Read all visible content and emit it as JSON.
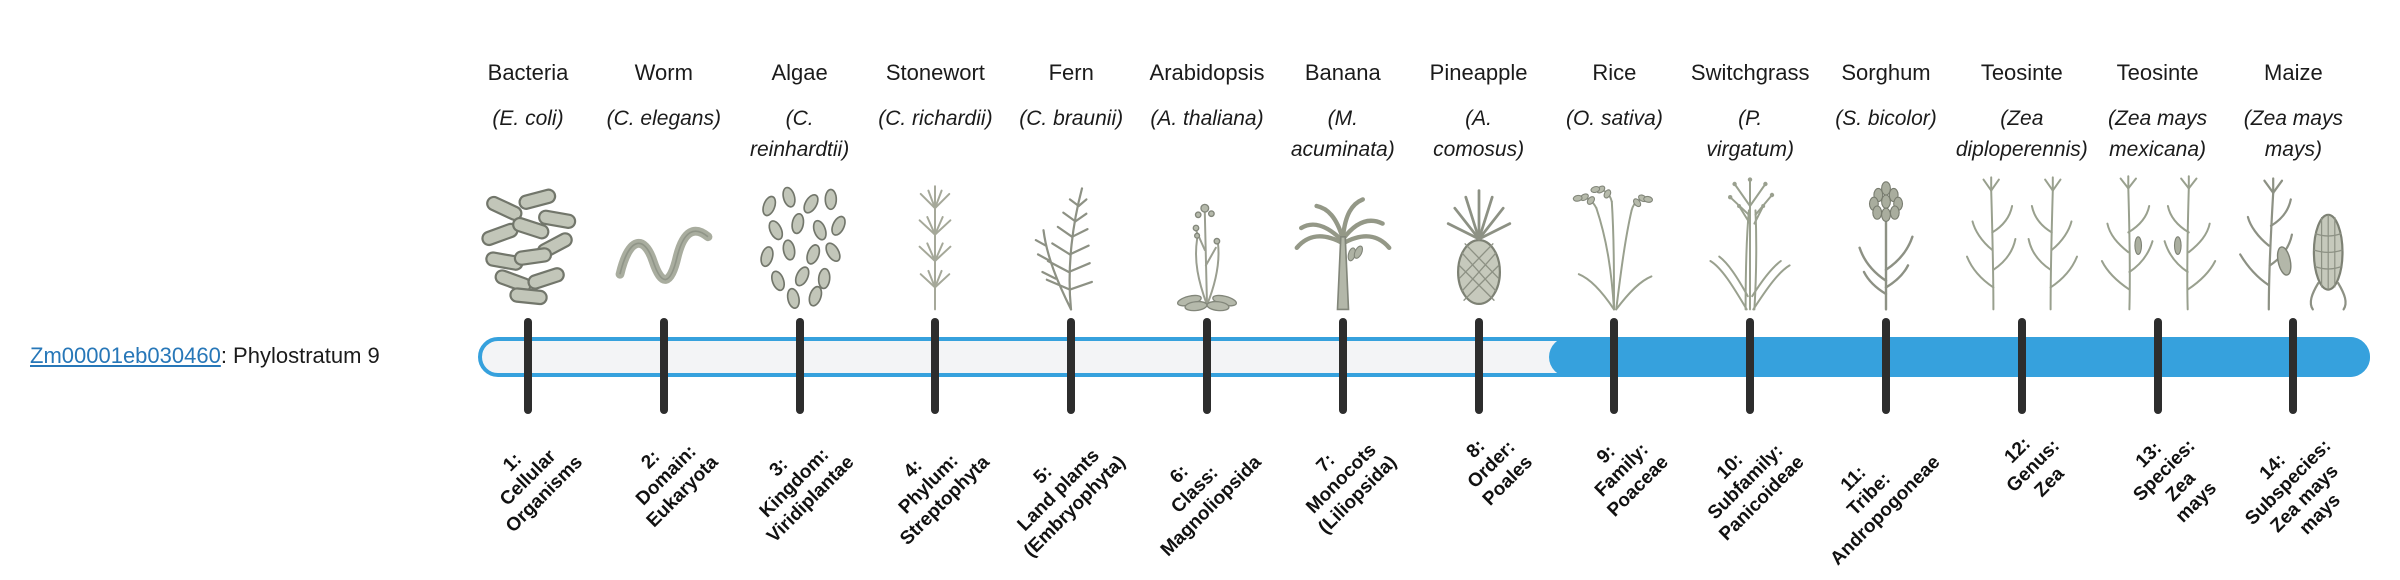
{
  "gene": {
    "id": "Zm00001eb030460",
    "suffix": ": Phylostratum 9",
    "phylostratum": 9,
    "link_color": "#2777b8"
  },
  "bar": {
    "outline_color": "#36a1dd",
    "fill_color": "#36a1dd",
    "track_color": "#f3f4f6",
    "tick_color": "#2d2d2d",
    "filled_from_stratum": 9,
    "filled_to_stratum": 14
  },
  "strata": [
    {
      "index": 1,
      "organism": "Bacteria",
      "scientific": "(E. coli)",
      "icon": "bacteria-icon",
      "axis_label": "1:\nCellular\nOrganisms"
    },
    {
      "index": 2,
      "organism": "Worm",
      "scientific": "(C. elegans)",
      "icon": "worm-icon",
      "axis_label": "2:\nDomain:\nEukaryota"
    },
    {
      "index": 3,
      "organism": "Algae",
      "scientific": "(C.\nreinhardtii)",
      "icon": "algae-icon",
      "axis_label": "3:\nKingdom:\nViridiplantae"
    },
    {
      "index": 4,
      "organism": "Stonewort",
      "scientific": "(C. richardii)",
      "icon": "stonewort-icon",
      "axis_label": "4:\nPhylum:\nStreptophyta"
    },
    {
      "index": 5,
      "organism": "Fern",
      "scientific": "(C. braunii)",
      "icon": "fern-icon",
      "axis_label": "5:\nLand plants\n(Embryophyta)"
    },
    {
      "index": 6,
      "organism": "Arabidopsis",
      "scientific": "(A. thaliana)",
      "icon": "arabidopsis-icon",
      "axis_label": "6:\nClass:\nMagnoliopsida"
    },
    {
      "index": 7,
      "organism": "Banana",
      "scientific": "(M.\nacuminata)",
      "icon": "banana-icon",
      "axis_label": "7:\nMonocots\n(Liliopsida)"
    },
    {
      "index": 8,
      "organism": "Pineapple",
      "scientific": "(A.\ncomosus)",
      "icon": "pineapple-icon",
      "axis_label": "8:\nOrder:\nPoales"
    },
    {
      "index": 9,
      "organism": "Rice",
      "scientific": "(O. sativa)",
      "icon": "rice-icon",
      "axis_label": "9:\nFamily:\nPoaceae"
    },
    {
      "index": 10,
      "organism": "Switchgrass",
      "scientific": "(P.\nvirgatum)",
      "icon": "switchgrass-icon",
      "axis_label": "10:\nSubfamily:\nPanicoideae"
    },
    {
      "index": 11,
      "organism": "Sorghum",
      "scientific": "(S. bicolor)",
      "icon": "sorghum-icon",
      "axis_label": "11:\nTribe:\nAndropogoneae"
    },
    {
      "index": 12,
      "organism": "Teosinte",
      "scientific": "(Zea\ndiploperennis)",
      "icon": "teosinte-icon",
      "axis_label": "12:\nGenus:\nZea"
    },
    {
      "index": 13,
      "organism": "Teosinte",
      "scientific": "(Zea mays\nmexicana)",
      "icon": "teosinte-mexicana-icon",
      "axis_label": "13:\nSpecies:\nZea\nmays"
    },
    {
      "index": 14,
      "organism": "Maize",
      "scientific": "(Zea mays\nmays)",
      "icon": "maize-icon",
      "axis_label": "14:\nSubspecies:\nZea mays\nmays"
    }
  ],
  "chart_data": {
    "type": "bar",
    "title": "Zm00001eb030460: Phylostratum 9",
    "orientation": "horizontal",
    "categories": [
      "1: Cellular Organisms",
      "2: Domain: Eukaryota",
      "3: Kingdom: Viridiplantae",
      "4: Phylum: Streptophyta",
      "5: Land plants (Embryophyta)",
      "6: Class: Magnoliopsida",
      "7: Monocots (Liliopsida)",
      "8: Order: Poales",
      "9: Family: Poaceae",
      "10: Subfamily: Panicoideae",
      "11: Tribe: Andropogoneae",
      "12: Genus: Zea",
      "13: Species: Zea mays",
      "14: Subspecies: Zea mays mays"
    ],
    "series": [
      {
        "name": "Zm00001eb030460",
        "phylostratum": 9,
        "highlighted_strata": [
          9,
          10,
          11,
          12,
          13,
          14
        ]
      }
    ],
    "legend": false,
    "grid": false
  }
}
